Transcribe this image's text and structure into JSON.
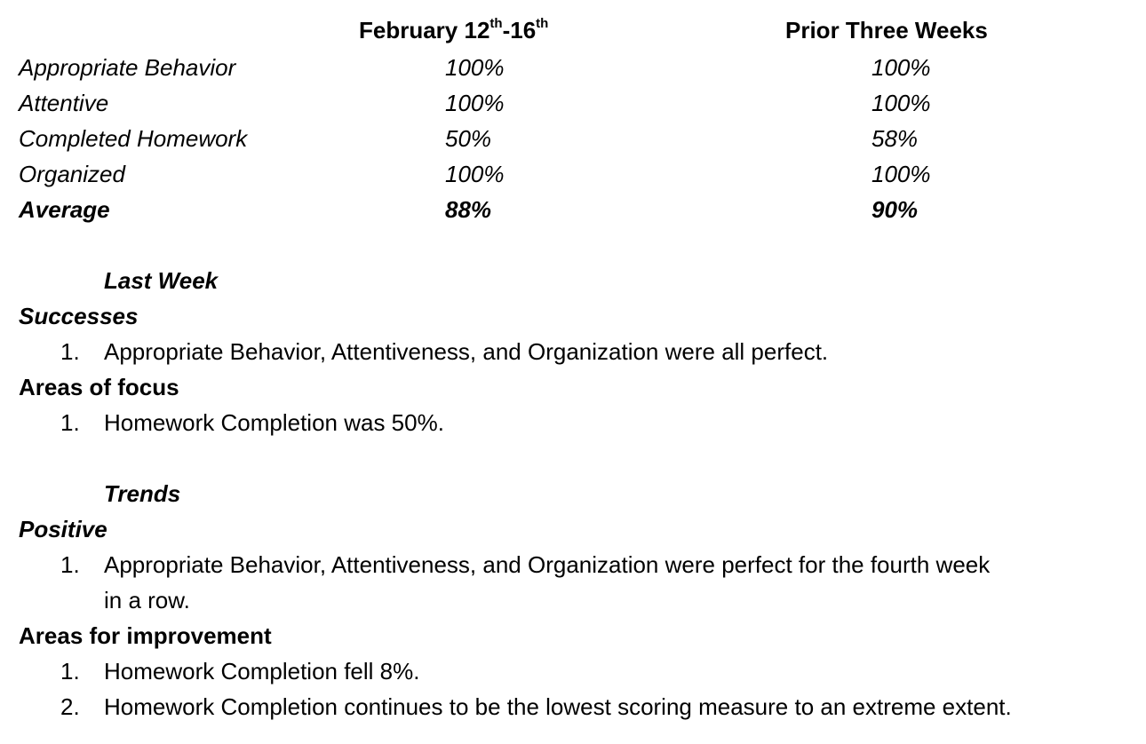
{
  "table": {
    "header_week_prefix": "February 12",
    "header_week_sup1": "th",
    "header_week_mid": "-16",
    "header_week_sup2": "th",
    "header_prior": "Prior Three Weeks",
    "rows": [
      {
        "label": "Appropriate Behavior",
        "week": "100%",
        "prior": "100%"
      },
      {
        "label": "Attentive",
        "week": "100%",
        "prior": "100%"
      },
      {
        "label": "Completed Homework",
        "week": "50%",
        "prior": "58%"
      },
      {
        "label": "Organized",
        "week": "100%",
        "prior": "100%"
      },
      {
        "label": "Average",
        "week": "88%",
        "prior": "90%"
      }
    ]
  },
  "last_week": {
    "title": "Last Week",
    "successes_heading": "Successes",
    "successes": [
      {
        "num": "1.",
        "text": "Appropriate Behavior, Attentiveness, and Organization were all perfect."
      }
    ],
    "focus_heading": "Areas of focus",
    "focus": [
      {
        "num": "1.",
        "text": "Homework Completion was 50%."
      }
    ]
  },
  "trends": {
    "title": "Trends",
    "positive_heading": "Positive",
    "positive": [
      {
        "num": "1.",
        "line1": "Appropriate Behavior, Attentiveness, and Organization were perfect for the fourth week",
        "line2": "in a row."
      }
    ],
    "improvement_heading": "Areas for improvement",
    "improvement": [
      {
        "num": "1.",
        "text": "Homework Completion fell 8%."
      },
      {
        "num": "2.",
        "text": "Homework Completion continues to be the lowest scoring measure to an extreme extent."
      }
    ]
  }
}
